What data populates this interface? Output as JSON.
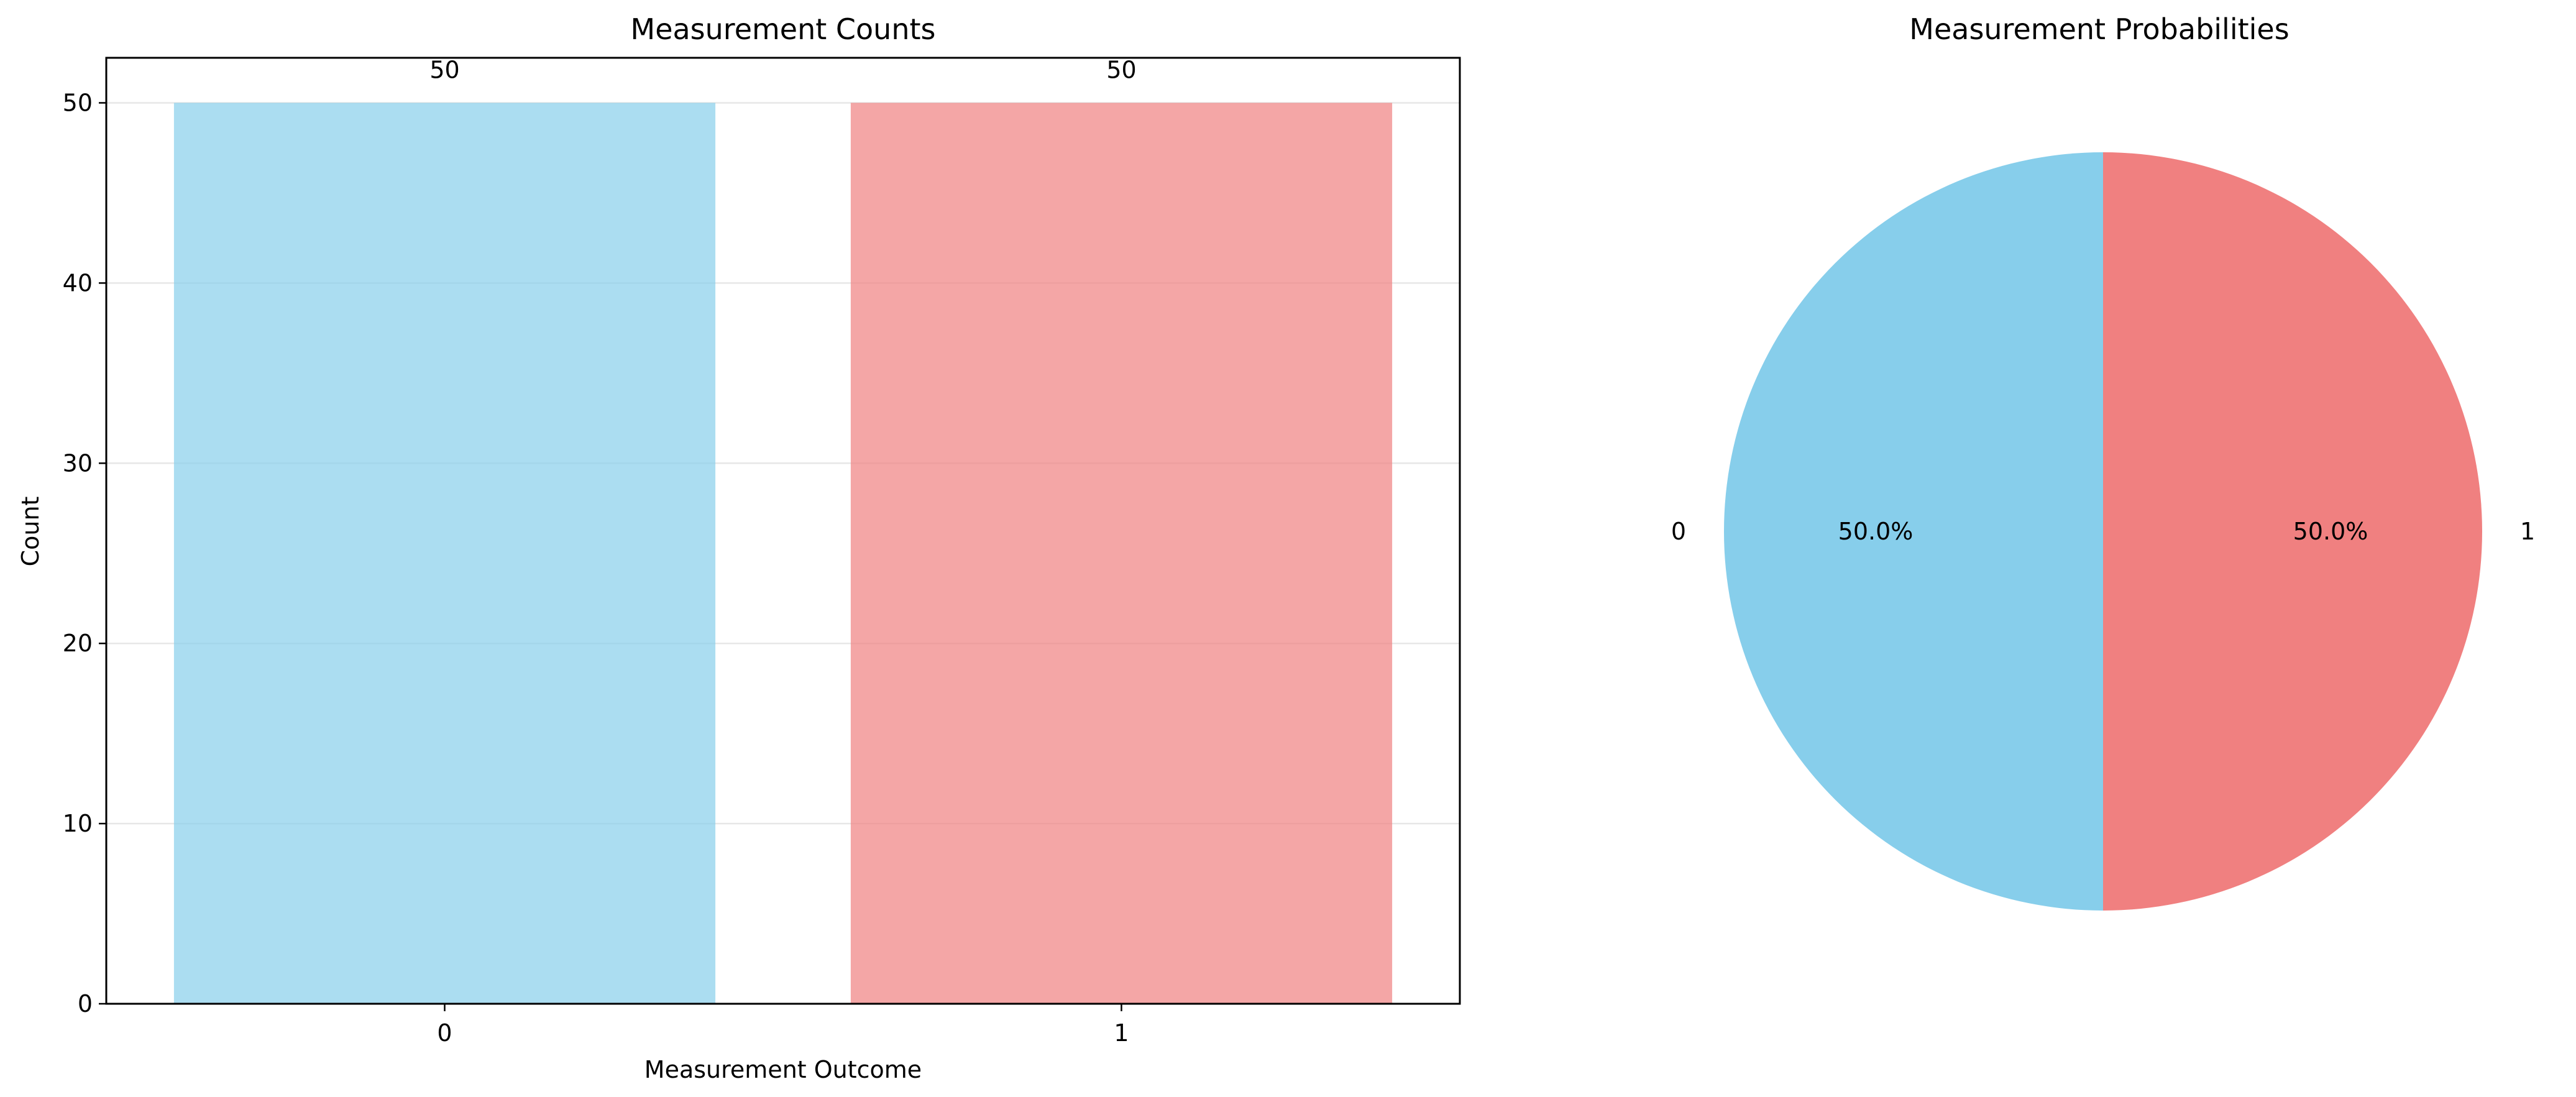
{
  "chart_data": [
    {
      "type": "bar",
      "title": "Measurement Counts",
      "xlabel": "Measurement Outcome",
      "ylabel": "Count",
      "categories": [
        "0",
        "1"
      ],
      "values": [
        50,
        50
      ],
      "data_labels": [
        "50",
        "50"
      ],
      "colors": [
        "#87ceeb",
        "#f08080"
      ],
      "bar_opacity": 0.7,
      "ylim": [
        0,
        52.5
      ],
      "yticks": [
        0,
        10,
        20,
        30,
        40,
        50
      ],
      "ytick_labels": [
        "0",
        "10",
        "20",
        "30",
        "40",
        "50"
      ],
      "grid": "horizontal",
      "legend": "none"
    },
    {
      "type": "pie",
      "title": "Measurement Probabilities",
      "labels": [
        "0",
        "1"
      ],
      "values": [
        50,
        50
      ],
      "percent_labels": [
        "50.0%",
        "50.0%"
      ],
      "colors": [
        "#87ceeb",
        "#f08080"
      ],
      "start_angle": 90,
      "legend": "none"
    }
  ]
}
